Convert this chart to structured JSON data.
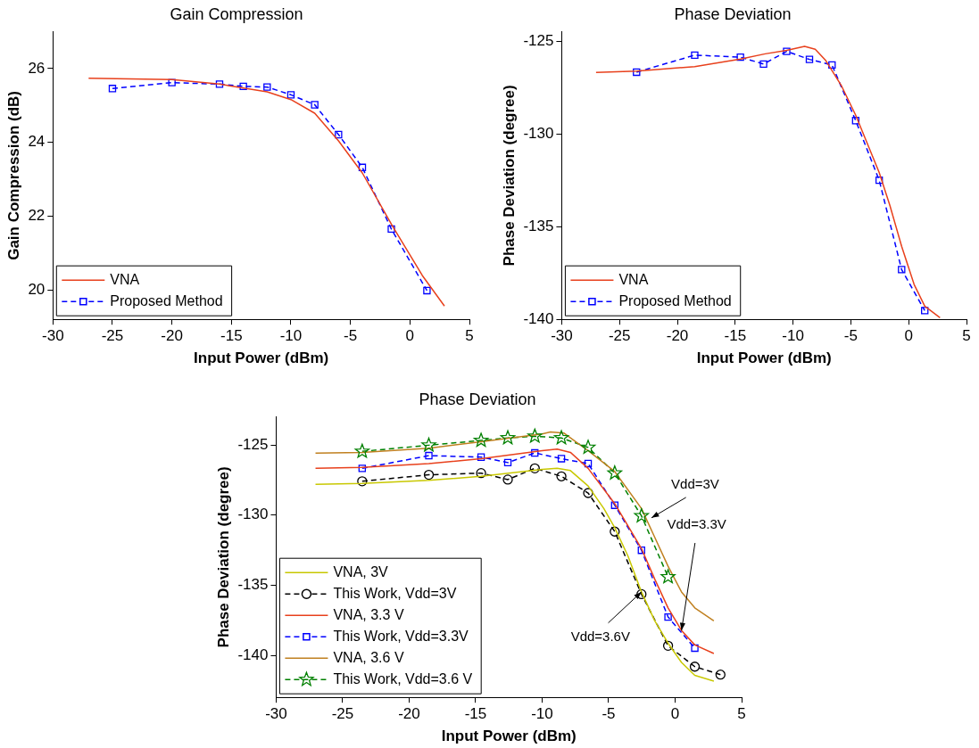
{
  "chart_data": [
    {
      "type": "line",
      "title": "Gain Compression",
      "xlabel": "Input Power (dBm)",
      "ylabel": "Gain Compression (dB)",
      "xlim": [
        -30,
        5
      ],
      "xticks": [
        -30,
        -25,
        -20,
        -15,
        -10,
        -5,
        0,
        5
      ],
      "ylim": [
        19.2,
        27
      ],
      "yticks": [
        20,
        22,
        24,
        26
      ],
      "grid": false,
      "legend": "bottom left",
      "series": [
        {
          "name": "VNA",
          "color": "#e8401c",
          "line_style": "solid",
          "marker": "none",
          "x": [
            -27,
            -20,
            -16,
            -12,
            -10,
            -8,
            -6,
            -4,
            -1.56,
            1.04,
            2.9
          ],
          "values": [
            25.74,
            25.7,
            25.58,
            25.37,
            25.16,
            24.79,
            24.04,
            23.17,
            21.78,
            20.39,
            19.56
          ]
        },
        {
          "name": "Proposed Method",
          "color": "#0000ff",
          "line_style": "dashed",
          "marker": "square",
          "x": [
            -25,
            -20,
            -16,
            -14,
            -12,
            -10,
            -8,
            -6,
            -4,
            -1.56,
            1.43
          ],
          "values": [
            25.46,
            25.62,
            25.58,
            25.52,
            25.5,
            25.29,
            25.02,
            24.21,
            23.32,
            21.65,
            19.98
          ]
        }
      ]
    },
    {
      "type": "line",
      "title": "Phase Deviation",
      "xlabel": "Input Power (dBm)",
      "ylabel": "Phase Deviation (degree)",
      "xlim": [
        -30,
        5
      ],
      "xticks": [
        -30,
        -25,
        -20,
        -15,
        -10,
        -5,
        0,
        5
      ],
      "ylim": [
        -140,
        -124.5
      ],
      "yticks": [
        -140,
        -135,
        -130,
        -125
      ],
      "grid": false,
      "legend": "bottom left",
      "series": [
        {
          "name": "VNA",
          "color": "#e8401c",
          "line_style": "solid",
          "marker": "none",
          "x": [
            -27.03,
            -23.5,
            -18.5,
            -14.55,
            -12.4,
            -10.55,
            -9.0,
            -8.08,
            -7.16,
            -5.84,
            -4.58,
            -2.55,
            -1.63,
            -0.61,
            0.47,
            1.39,
            2.71
          ],
          "values": [
            -126.69,
            -126.62,
            -126.38,
            -125.97,
            -125.69,
            -125.5,
            -125.29,
            -125.44,
            -126.06,
            -127.38,
            -129.0,
            -132.09,
            -133.85,
            -136.06,
            -138.12,
            -139.29,
            -139.91
          ]
        },
        {
          "name": "Proposed Method",
          "color": "#0000ff",
          "line_style": "dashed",
          "marker": "square",
          "x": [
            -23.53,
            -18.5,
            -14.55,
            -12.55,
            -10.55,
            -8.58,
            -6.63,
            -4.58,
            -2.55,
            -0.61,
            1.39
          ],
          "values": [
            -126.68,
            -125.76,
            -125.87,
            -126.24,
            -125.56,
            -125.99,
            -126.29,
            -129.29,
            -132.5,
            -137.32,
            -139.53
          ]
        }
      ]
    },
    {
      "type": "line",
      "title": "Phase Deviation",
      "xlabel": "Input Power (dBm)",
      "ylabel": "Phase Deviation (degree)",
      "xlim": [
        -30,
        5
      ],
      "xticks": [
        -30,
        -25,
        -20,
        -15,
        -10,
        -5,
        0,
        5
      ],
      "ylim": [
        -143,
        -123
      ],
      "yticks": [
        -140,
        -135,
        -130,
        -125
      ],
      "grid": false,
      "legend": "bottom left",
      "annotations": [
        {
          "text": "Vdd=3V",
          "x": -1.78,
          "y": -130.2
        },
        {
          "text": "Vdd=3.3V",
          "x": 0.48,
          "y": -138.23
        },
        {
          "text": "Vdd=3.6V",
          "x": -2.53,
          "y": -135.48
        }
      ],
      "series": [
        {
          "name": "VNA, 3V",
          "color": "#c8c800",
          "line_style": "solid",
          "marker": "none",
          "x": [
            -27.04,
            -23.53,
            -18.52,
            -14.59,
            -10.0,
            -8.87,
            -7.87,
            -6.54,
            -5.36,
            -4.54,
            -3.53,
            -2.53,
            -1.53,
            -0.53,
            0.48,
            1.48,
            2.91
          ],
          "values": [
            -127.81,
            -127.75,
            -127.52,
            -127.24,
            -126.74,
            -126.67,
            -126.83,
            -127.93,
            -129.53,
            -130.9,
            -132.96,
            -135.48,
            -137.54,
            -139.14,
            -140.51,
            -141.43,
            -141.84
          ]
        },
        {
          "name": "This Work, Vdd=3V",
          "color": "#000000",
          "line_style": "dashed",
          "marker": "circle",
          "x": [
            -23.53,
            -18.52,
            -14.59,
            -12.58,
            -10.55,
            -8.55,
            -6.54,
            -4.54,
            -2.53,
            -0.53,
            1.48,
            3.41
          ],
          "values": [
            -127.59,
            -127.13,
            -127.01,
            -127.47,
            -126.67,
            -127.24,
            -128.43,
            -131.18,
            -135.64,
            -139.32,
            -140.81,
            -141.38
          ]
        },
        {
          "name": "VNA, 3.3 V",
          "color": "#e8401c",
          "line_style": "solid",
          "marker": "none",
          "x": [
            -27.04,
            -23.53,
            -18.52,
            -14.59,
            -10.0,
            -8.87,
            -7.87,
            -6.54,
            -4.54,
            -2.53,
            -1.53,
            -0.53,
            0.48,
            1.48,
            2.91
          ],
          "values": [
            -126.67,
            -126.6,
            -126.33,
            -125.98,
            -125.41,
            -125.3,
            -125.53,
            -126.67,
            -129.19,
            -132.39,
            -134.57,
            -136.62,
            -138.23,
            -139.26,
            -139.87
          ]
        },
        {
          "name": "This Work, Vdd=3.3V",
          "color": "#0000ff",
          "line_style": "dashed",
          "marker": "square",
          "x": [
            -23.53,
            -18.52,
            -14.59,
            -12.58,
            -10.55,
            -8.55,
            -6.54,
            -4.54,
            -2.53,
            -0.53,
            1.48
          ],
          "values": [
            -126.67,
            -125.76,
            -125.87,
            -126.26,
            -125.57,
            -125.98,
            -126.33,
            -129.3,
            -132.51,
            -137.27,
            -139.49
          ]
        },
        {
          "name": "VNA, 3.6 V",
          "color": "#c08020",
          "line_style": "solid",
          "marker": "none",
          "x": [
            -27.04,
            -23.53,
            -18.52,
            -14.59,
            -10.0,
            -9.37,
            -8.37,
            -7.37,
            -6.54,
            -4.54,
            -2.53,
            -1.53,
            -0.53,
            0.48,
            1.48,
            2.91
          ],
          "values": [
            -125.59,
            -125.53,
            -125.23,
            -124.77,
            -124.22,
            -124.08,
            -124.15,
            -124.84,
            -125.41,
            -126.9,
            -129.53,
            -131.59,
            -133.65,
            -135.48,
            -136.62,
            -137.54
          ]
        },
        {
          "name": "This Work, Vdd=3.6 V",
          "color": "#008000",
          "line_style": "dashed",
          "marker": "star",
          "x": [
            -23.53,
            -18.52,
            -14.59,
            -12.58,
            -10.55,
            -8.55,
            -6.54,
            -4.54,
            -2.53,
            -0.53
          ],
          "values": [
            -125.46,
            -125.02,
            -124.68,
            -124.5,
            -124.38,
            -124.5,
            -125.18,
            -127.01,
            -130.06,
            -134.41
          ]
        }
      ]
    }
  ]
}
